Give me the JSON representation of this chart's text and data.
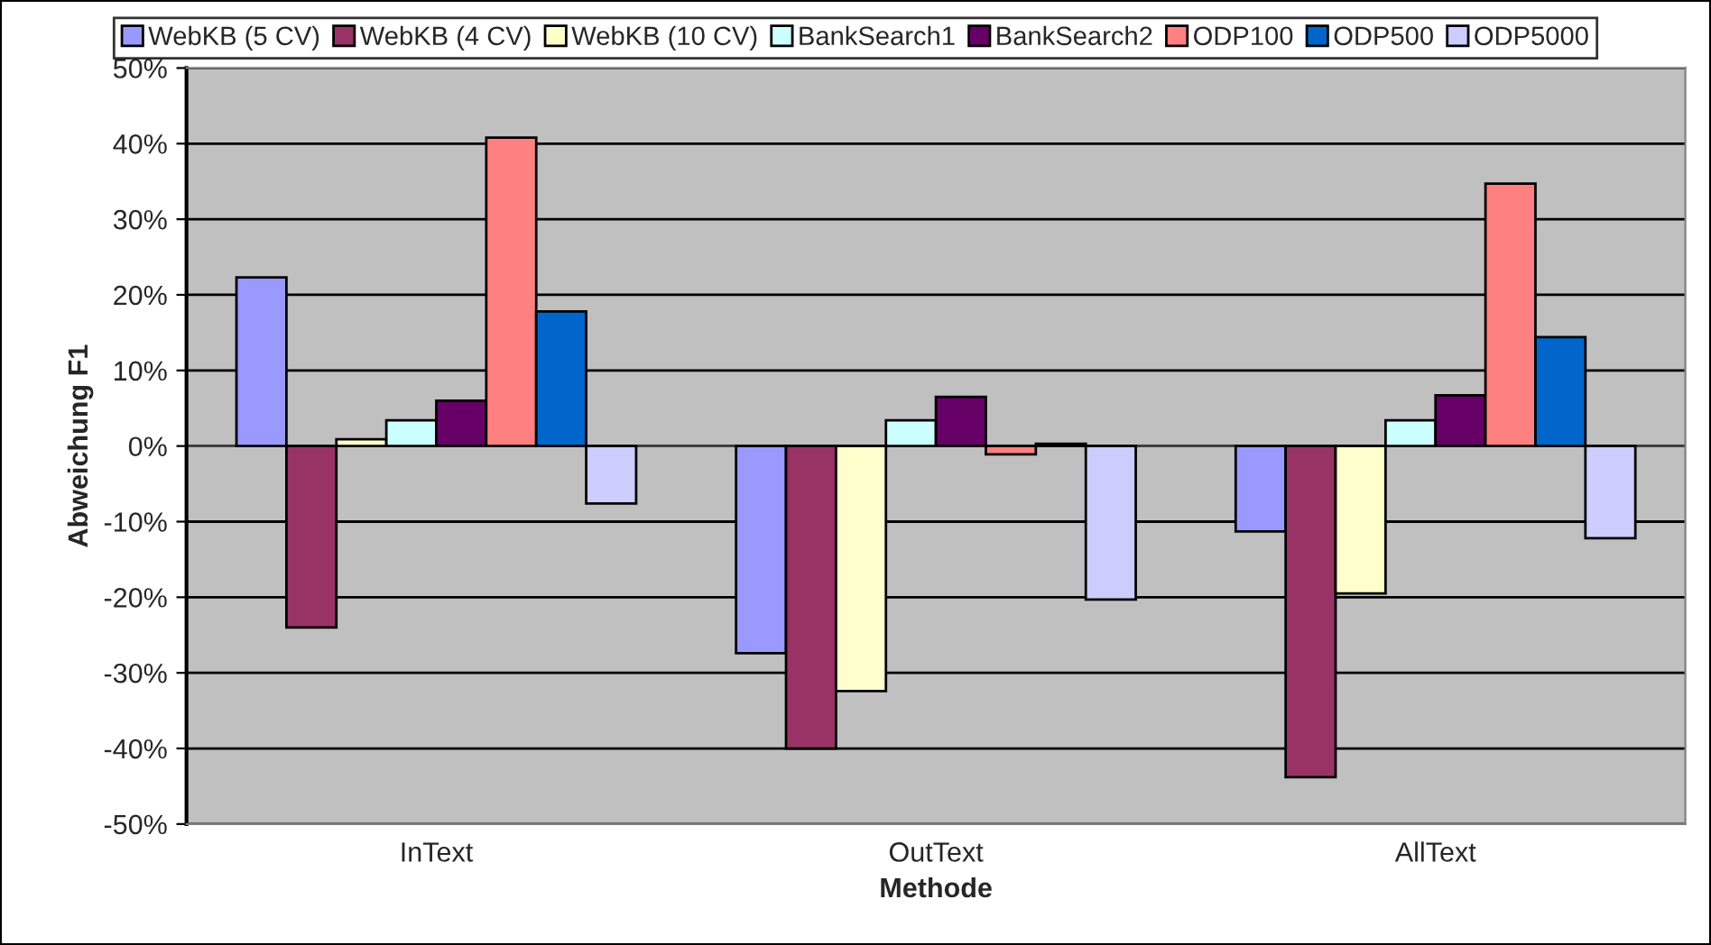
{
  "chart_data": {
    "type": "bar",
    "xlabel": "Methode",
    "ylabel": "Abweichung F1",
    "categories": [
      "InText",
      "OutText",
      "AllText"
    ],
    "series": [
      {
        "name": "WebKB (5 CV)",
        "color": "#9999ff",
        "values": [
          22.3,
          -27.4,
          -11.3
        ]
      },
      {
        "name": "WebKB (4 CV)",
        "color": "#993366",
        "values": [
          -24.0,
          -40.0,
          -43.8
        ]
      },
      {
        "name": "WebKB (10 CV)",
        "color": "#ffffcc",
        "values": [
          0.9,
          -32.4,
          -19.5
        ]
      },
      {
        "name": "BankSearch1",
        "color": "#ccffff",
        "values": [
          3.4,
          3.4,
          3.4
        ]
      },
      {
        "name": "BankSearch2",
        "color": "#660066",
        "values": [
          6.0,
          6.5,
          6.7
        ]
      },
      {
        "name": "ODP100",
        "color": "#ff8080",
        "values": [
          40.8,
          -1.1,
          34.7
        ]
      },
      {
        "name": "ODP500",
        "color": "#0066cc",
        "values": [
          17.8,
          0.3,
          14.4
        ]
      },
      {
        "name": "ODP5000",
        "color": "#ccccff",
        "values": [
          -7.6,
          -20.3,
          -12.2
        ]
      }
    ],
    "ylim": [
      -50,
      50
    ],
    "yticks": [
      {
        "value": -50,
        "label": "-50%"
      },
      {
        "value": -40,
        "label": "-40%"
      },
      {
        "value": -30,
        "label": "-30%"
      },
      {
        "value": -20,
        "label": "-20%"
      },
      {
        "value": -10,
        "label": "-10%"
      },
      {
        "value": 0,
        "label": "0%"
      },
      {
        "value": 10,
        "label": "10%"
      },
      {
        "value": 20,
        "label": "20%"
      },
      {
        "value": 30,
        "label": "30%"
      },
      {
        "value": 40,
        "label": "40%"
      },
      {
        "value": 50,
        "label": "50%"
      }
    ],
    "grid": "y",
    "legend": "top"
  }
}
